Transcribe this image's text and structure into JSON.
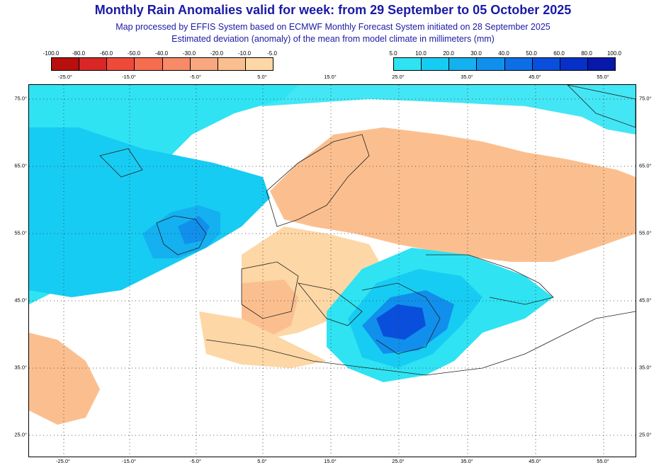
{
  "header": {
    "title": "Monthly Rain Anomalies valid for week: from 29 September to 05 October 2025",
    "subtitle_line1": "Map processed by EFFIS System based on ECMWF Monthly Forecast System initiated on 28 September 2025",
    "subtitle_line2": "Estimated deviation (anomaly) of the mean from model climate in millimeters (mm)"
  },
  "legend_negative": {
    "labels": [
      "-100.0",
      "-80.0",
      "-60.0",
      "-50.0",
      "-40.0",
      "-30.0",
      "-20.0",
      "-10.0",
      "-5.0"
    ],
    "colors": [
      "#b80f0f",
      "#d92626",
      "#ee4a3a",
      "#f56c4f",
      "#f88a67",
      "#f9a77e",
      "#fbbf8f",
      "#fdd7a6"
    ]
  },
  "legend_positive": {
    "labels": [
      "5.0",
      "10.0",
      "20.0",
      "30.0",
      "40.0",
      "50.0",
      "60.0",
      "80.0",
      "100.0"
    ],
    "colors": [
      "#2fe3f3",
      "#17ccf2",
      "#14b0f0",
      "#1090ec",
      "#0c6fe6",
      "#0a4fdc",
      "#0630c8",
      "#0818a8"
    ]
  },
  "axes": {
    "longitude_labels": [
      "-25.0°",
      "-15.0°",
      "-5.0°",
      "5.0°",
      "15.0°",
      "25.0°",
      "35.0°",
      "45.0°",
      "55.0°"
    ],
    "latitude_labels": [
      "75.0°",
      "65.0°",
      "55.0°",
      "45.0°",
      "35.0°",
      "25.0°"
    ]
  }
}
